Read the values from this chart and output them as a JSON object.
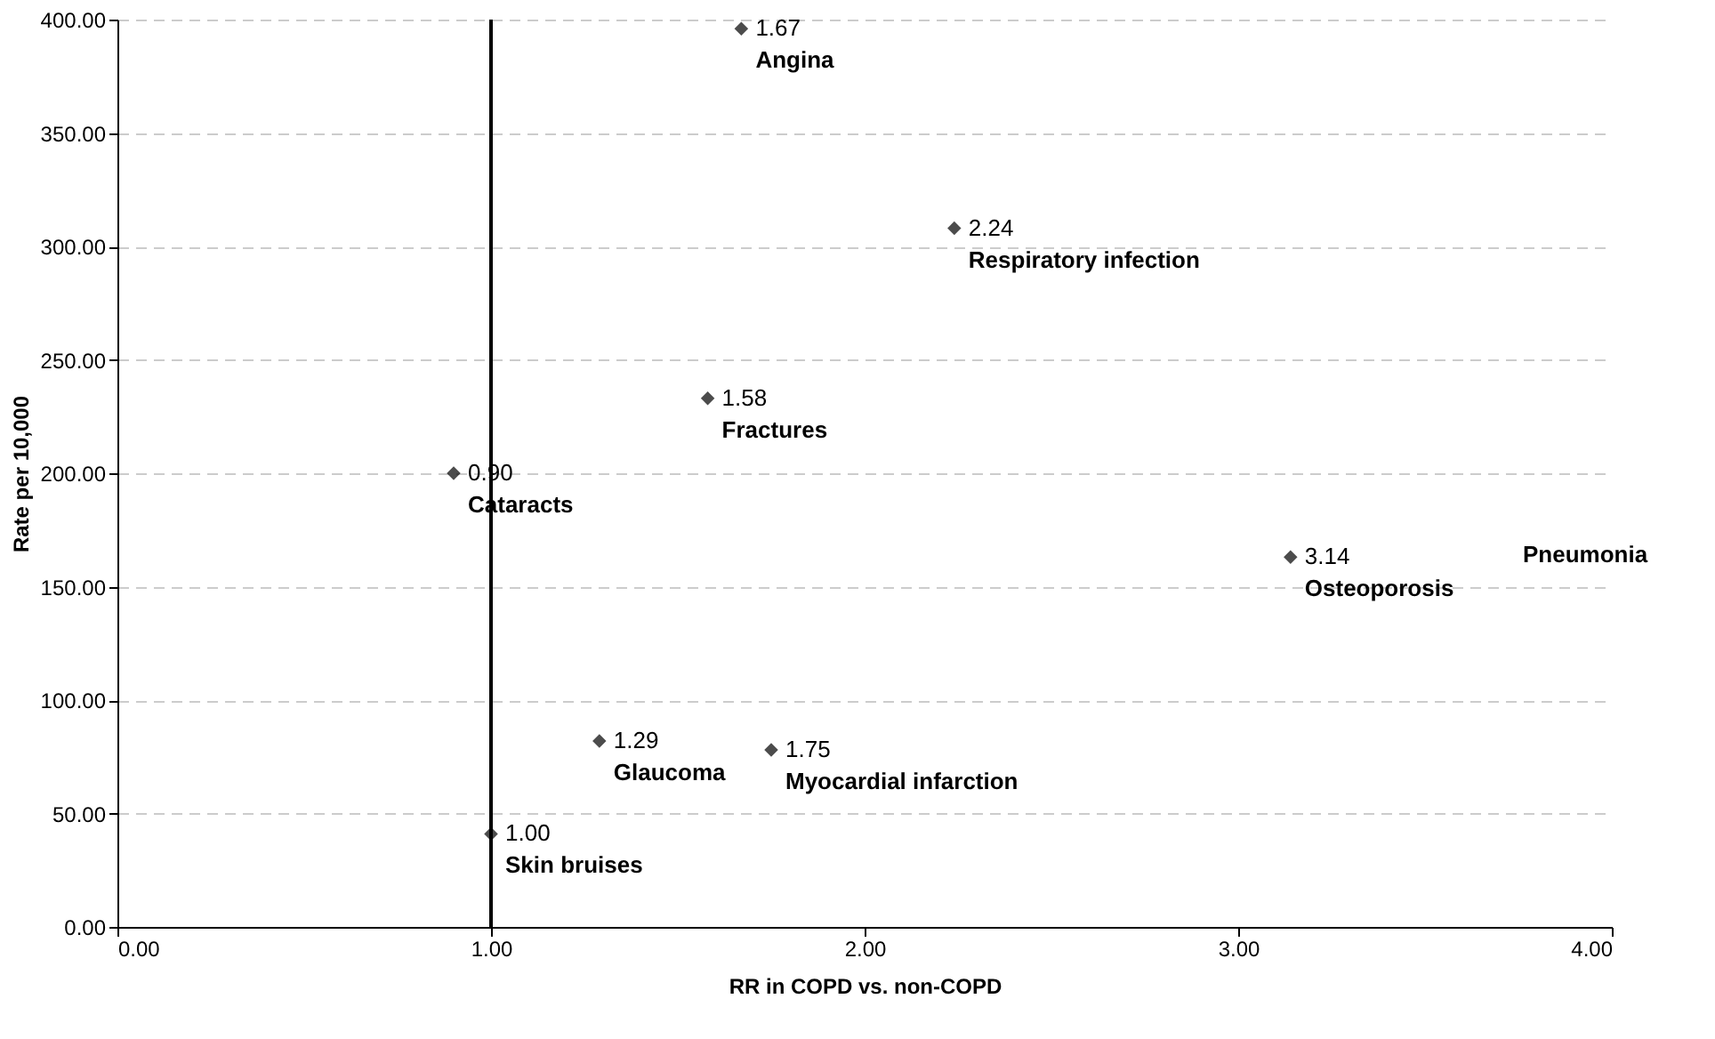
{
  "chart_data": {
    "type": "scatter",
    "xlabel": "RR in COPD vs. non-COPD",
    "ylabel": "Rate per 10,000",
    "x": [
      1.67,
      2.24,
      1.58,
      0.9,
      3.14,
      1.29,
      1.75,
      1.0
    ],
    "values": [
      396,
      308,
      233,
      200,
      163,
      82,
      78,
      41
    ],
    "color": "#000000",
    "marker": "diamond",
    "xlim": [
      0,
      4
    ],
    "xticks": [
      {
        "value": 0,
        "label": "0.00"
      },
      {
        "value": 1,
        "label": "1.00"
      },
      {
        "value": 2,
        "label": "2.00"
      },
      {
        "value": 3,
        "label": "3.00"
      },
      {
        "value": 4,
        "label": "4.00"
      }
    ],
    "ylim": [
      0,
      400
    ],
    "yticks": [
      {
        "value": 0,
        "label": "0.00"
      },
      {
        "value": 50,
        "label": "50.00"
      },
      {
        "value": 100,
        "label": "100.00"
      },
      {
        "value": 150,
        "label": "150.00"
      },
      {
        "value": 200,
        "label": "200.00"
      },
      {
        "value": 250,
        "label": "250.00"
      },
      {
        "value": 300,
        "label": "300.00"
      },
      {
        "value": 350,
        "label": "350.00"
      },
      {
        "value": 400,
        "label": "400.00"
      }
    ],
    "grid": "y",
    "ref_lines": [
      {
        "axis": "x",
        "value": 1,
        "color": "#000000",
        "line_style": "solid"
      }
    ],
    "annotations": [
      {
        "text": "1.67",
        "x": 1.67,
        "y": 396
      },
      {
        "text": "2.24",
        "x": 2.24,
        "y": 308
      },
      {
        "text": "1.58",
        "x": 1.58,
        "y": 233
      },
      {
        "text": "0.90",
        "x": 0.9,
        "y": 200
      },
      {
        "text": "3.14",
        "x": 3.14,
        "y": 163
      },
      {
        "text": "1.29",
        "x": 1.29,
        "y": 82
      },
      {
        "text": "1.75",
        "x": 1.75,
        "y": 78
      },
      {
        "text": "1.00",
        "x": 1.0,
        "y": 41
      },
      {
        "text": "Angina",
        "x": 1.67,
        "y": 396
      },
      {
        "text": "Respiratory infection",
        "x": 2.24,
        "y": 308
      },
      {
        "text": "Fractures",
        "x": 1.58,
        "y": 233
      },
      {
        "text": "Cataracts",
        "x": 0.9,
        "y": 200
      },
      {
        "text": "Osteoporosis",
        "x": 3.14,
        "y": 163
      },
      {
        "text": "Glaucoma",
        "x": 1.29,
        "y": 82
      },
      {
        "text": "Myocardial infarction",
        "x": 1.75,
        "y": 78
      },
      {
        "text": "Skin bruises",
        "x": 1.0,
        "y": 41
      },
      "Pneumonia"
    ]
  }
}
